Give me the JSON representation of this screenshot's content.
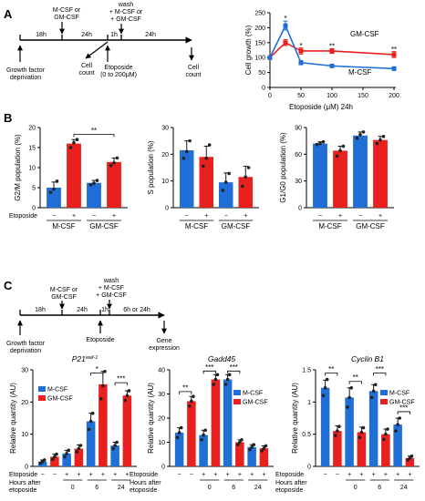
{
  "panels": {
    "A": "A",
    "B": "B",
    "C": "C"
  },
  "timelineA": {
    "top": [
      "M-CSF or",
      "GM-CSF"
    ],
    "wash": [
      "wash",
      "+ M-CSF or",
      "+ GM-CSF"
    ],
    "h18": "18h",
    "h24a": "24h",
    "h1": "1h",
    "h24b": "24h",
    "deprivation": [
      "Growth factor",
      "deprivation"
    ],
    "count1": [
      "Cell",
      "count"
    ],
    "etoposide": [
      "Etoposide",
      "(0 to 200μM)"
    ],
    "count2": [
      "Cell",
      "count"
    ]
  },
  "timelineC": {
    "top": [
      "M-CSF or",
      "GM-CSF"
    ],
    "wash": [
      "wash",
      "+ M-CSF",
      "+ GM-CSF"
    ],
    "h18": "18h",
    "h24": "24h",
    "h1": "1h",
    "h6_24": "6h or 24h",
    "deprivation": [
      "Growth factor",
      "deprivation"
    ],
    "etoposide": "Etoposide",
    "expression": [
      "Gene",
      "expression"
    ]
  },
  "colors": {
    "mcsf": "#1f6fd6",
    "gmcsf": "#e8211f"
  },
  "chart_data": [
    {
      "id": "A-growth",
      "type": "line",
      "xlabel": "Etoposide (μM) 24h",
      "ylabel": "Cell growth (%)",
      "xticks": [
        0,
        50,
        100,
        150,
        200
      ],
      "yticks": [
        0,
        50,
        100,
        150,
        200,
        250
      ],
      "xlim": [
        0,
        200
      ],
      "ylim": [
        0,
        250
      ],
      "x": [
        0,
        25,
        50,
        100,
        200
      ],
      "series": [
        {
          "name": "GM-CSF",
          "key": "gmcsf",
          "values": [
            100,
            150,
            122,
            122,
            110
          ],
          "err": [
            0,
            10,
            10,
            8,
            10
          ]
        },
        {
          "name": "M-CSF",
          "key": "mcsf",
          "values": [
            100,
            207,
            83,
            72,
            63
          ],
          "err": [
            0,
            15,
            7,
            5,
            6
          ]
        }
      ],
      "stars": [
        {
          "x": 25,
          "y": 232,
          "t": "*"
        },
        {
          "x": 50,
          "y": 140,
          "t": "*"
        },
        {
          "x": 100,
          "y": 138,
          "t": "**"
        },
        {
          "x": 200,
          "y": 128,
          "t": "**"
        }
      ]
    },
    {
      "id": "B-g2m",
      "type": "bar",
      "ylabel": "G2/M population (%)",
      "ylim": [
        0,
        20
      ],
      "yticks": [
        0,
        5,
        10,
        15,
        20
      ],
      "values": [
        5.0,
        16.0,
        6.2,
        11.4
      ],
      "err": [
        1.4,
        1.0,
        0.6,
        1.0
      ],
      "points": [
        [
          3.8,
          4.6,
          6.6
        ],
        [
          15.0,
          16.2,
          17.0
        ],
        [
          5.7,
          6.1,
          6.8
        ],
        [
          10.5,
          11.2,
          12.4
        ]
      ],
      "sig": [
        {
          "from": 1,
          "to": 3,
          "t": "**",
          "y": 18.3
        }
      ]
    },
    {
      "id": "B-s",
      "type": "bar",
      "ylabel": "S population (%)",
      "ylim": [
        0,
        30
      ],
      "yticks": [
        0,
        10,
        20,
        30
      ],
      "values": [
        21.5,
        19.0,
        9.5,
        11.5
      ],
      "err": [
        3.5,
        4.0,
        3.5,
        4.0
      ],
      "points": [
        [
          18.5,
          21.0,
          25.0
        ],
        [
          15.5,
          18.5,
          23.5
        ],
        [
          6.5,
          9.5,
          12.8
        ],
        [
          8.0,
          11.5,
          15.0
        ]
      ],
      "sig": []
    },
    {
      "id": "B-g1",
      "type": "bar",
      "ylabel": "G1/G0 population (%)",
      "ylim": [
        0,
        90
      ],
      "yticks": [
        0,
        30,
        60,
        90
      ],
      "values": [
        72,
        64,
        81,
        76
      ],
      "err": [
        2,
        5,
        4,
        4
      ],
      "points": [
        [
          71,
          72,
          74
        ],
        [
          58,
          64,
          69
        ],
        [
          78,
          82,
          85
        ],
        [
          72,
          76,
          80
        ]
      ],
      "sig": []
    },
    {
      "id": "C-p21",
      "type": "bar",
      "gene": "P21",
      "gene_sup": "waf-1",
      "ylabel": "Relative quantity (AU)",
      "ylim": [
        0,
        30
      ],
      "yticks": [
        0,
        10,
        20,
        30
      ],
      "values": [
        1.5,
        3.0,
        4.0,
        5.5,
        14.0,
        25.5,
        6.5,
        22.0
      ],
      "err": [
        0.5,
        0.8,
        1.0,
        1.2,
        2.5,
        4.0,
        1.0,
        1.5
      ],
      "points": [
        [
          1.0,
          1.5,
          2.0
        ],
        [
          2.2,
          3.0,
          3.8
        ],
        [
          3.0,
          4.0,
          5.0
        ],
        [
          4.5,
          5.5,
          6.5
        ],
        [
          11.5,
          14.0,
          16.5
        ],
        [
          21.0,
          25.0,
          29.5
        ],
        [
          5.5,
          6.5,
          7.5
        ],
        [
          20.5,
          22.0,
          23.5
        ]
      ],
      "legend": [
        "M-CSF",
        "GM-CSF"
      ],
      "sig": [
        {
          "from": 4,
          "to": 5,
          "t": "*",
          "y": 29
        },
        {
          "from": 6,
          "to": 7,
          "t": "***",
          "y": 26
        }
      ]
    },
    {
      "id": "C-gadd45",
      "type": "bar",
      "gene": "Gadd45",
      "gene_sup": "",
      "ylabel": "Relative quantity (AU)",
      "ylim": [
        0,
        40
      ],
      "yticks": [
        0,
        10,
        20,
        30,
        40
      ],
      "values": [
        14.0,
        27.0,
        13.0,
        36.0,
        36.0,
        10.0,
        8.0,
        7.5
      ],
      "err": [
        2.0,
        2.0,
        2.0,
        2.0,
        2.0,
        1.0,
        1.0,
        1.0
      ],
      "points": [
        [
          12,
          14,
          16
        ],
        [
          25,
          27,
          29
        ],
        [
          11,
          13,
          15
        ],
        [
          34,
          36,
          38
        ],
        [
          34,
          36,
          38
        ],
        [
          9,
          10,
          11
        ],
        [
          7,
          8,
          9
        ],
        [
          6.5,
          7.5,
          8.5
        ]
      ],
      "legend": [
        "M-CSF",
        "GM-CSF"
      ],
      "sig": [
        {
          "from": 0,
          "to": 1,
          "t": "**",
          "y": 31
        },
        {
          "from": 2,
          "to": 3,
          "t": "***",
          "y": 39.5
        },
        {
          "from": 4,
          "to": 5,
          "t": "***",
          "y": 39.5
        }
      ]
    },
    {
      "id": "C-cyclinb1",
      "type": "bar",
      "gene": "Cyclin B1",
      "gene_sup": "",
      "ylabel": "Relative quantity (AU)",
      "ylim": [
        0,
        1.5
      ],
      "yticks": [
        0,
        0.5,
        1.0,
        1.5
      ],
      "values": [
        1.22,
        0.55,
        1.07,
        0.53,
        1.17,
        0.5,
        0.65,
        0.13
      ],
      "err": [
        0.12,
        0.08,
        0.15,
        0.08,
        0.1,
        0.08,
        0.1,
        0.03
      ],
      "points": [
        [
          1.1,
          1.22,
          1.35
        ],
        [
          0.48,
          0.55,
          0.62
        ],
        [
          0.92,
          1.07,
          1.22
        ],
        [
          0.45,
          0.53,
          0.6
        ],
        [
          1.07,
          1.17,
          1.27
        ],
        [
          0.42,
          0.5,
          0.58
        ],
        [
          0.55,
          0.65,
          0.75
        ],
        [
          0.1,
          0.13,
          0.16
        ]
      ],
      "legend": [
        "M-CSF",
        "GM-CSF"
      ],
      "sig": [
        {
          "from": 0,
          "to": 1,
          "t": "**",
          "y": 1.45
        },
        {
          "from": 2,
          "to": 3,
          "t": "**",
          "y": 1.32
        },
        {
          "from": 4,
          "to": 5,
          "t": "***",
          "y": 1.45
        },
        {
          "from": 6,
          "to": 7,
          "t": "***",
          "y": 0.85
        }
      ]
    }
  ],
  "xlabels": {
    "etoposide": "Etoposide",
    "minus": "−",
    "plus": "+",
    "mcsf": "M-CSF",
    "gmcsf": "GM-CSF",
    "hours": [
      "Hours after",
      "etoposide"
    ],
    "h0": "0",
    "h6": "6",
    "h24": "24"
  }
}
